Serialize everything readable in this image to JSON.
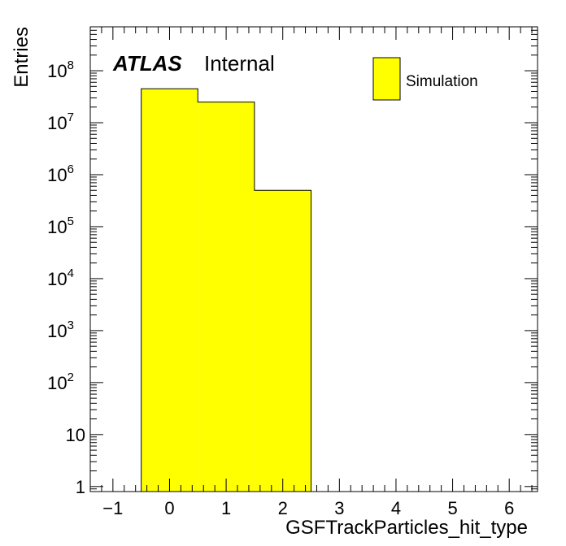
{
  "chart_data": {
    "type": "bar",
    "xlabel": "GSFTrackParticles_hit_type",
    "ylabel": "Entries",
    "xlim": [
      -1.4,
      6.5
    ],
    "ylim": [
      0.8,
      700000000
    ],
    "y_scale": "log",
    "x_ticks": [
      -1,
      0,
      1,
      2,
      3,
      4,
      5,
      6
    ],
    "x_tick_labels": [
      "−1",
      "0",
      "1",
      "2",
      "3",
      "4",
      "5",
      "6"
    ],
    "y_ticks": [
      {
        "value": 1,
        "base": "1",
        "exp": ""
      },
      {
        "value": 10,
        "base": "10",
        "exp": ""
      },
      {
        "value": 100,
        "base": "10",
        "exp": "2"
      },
      {
        "value": 1000,
        "base": "10",
        "exp": "3"
      },
      {
        "value": 10000,
        "base": "10",
        "exp": "4"
      },
      {
        "value": 100000,
        "base": "10",
        "exp": "5"
      },
      {
        "value": 1000000,
        "base": "10",
        "exp": "6"
      },
      {
        "value": 10000000,
        "base": "10",
        "exp": "7"
      },
      {
        "value": 100000000,
        "base": "10",
        "exp": "8"
      }
    ],
    "bins": [
      {
        "low": -0.5,
        "high": 0.5,
        "value": 45000000
      },
      {
        "low": 0.5,
        "high": 1.5,
        "value": 25000000
      },
      {
        "low": 1.5,
        "high": 2.5,
        "value": 500000
      }
    ],
    "legend": {
      "label": "Simulation",
      "position": "top-right",
      "color": "#ffff00"
    },
    "label_tag": "ATLAS",
    "label_status": "Internal",
    "fill_color": "#ffff00",
    "line_color": "#000000"
  }
}
